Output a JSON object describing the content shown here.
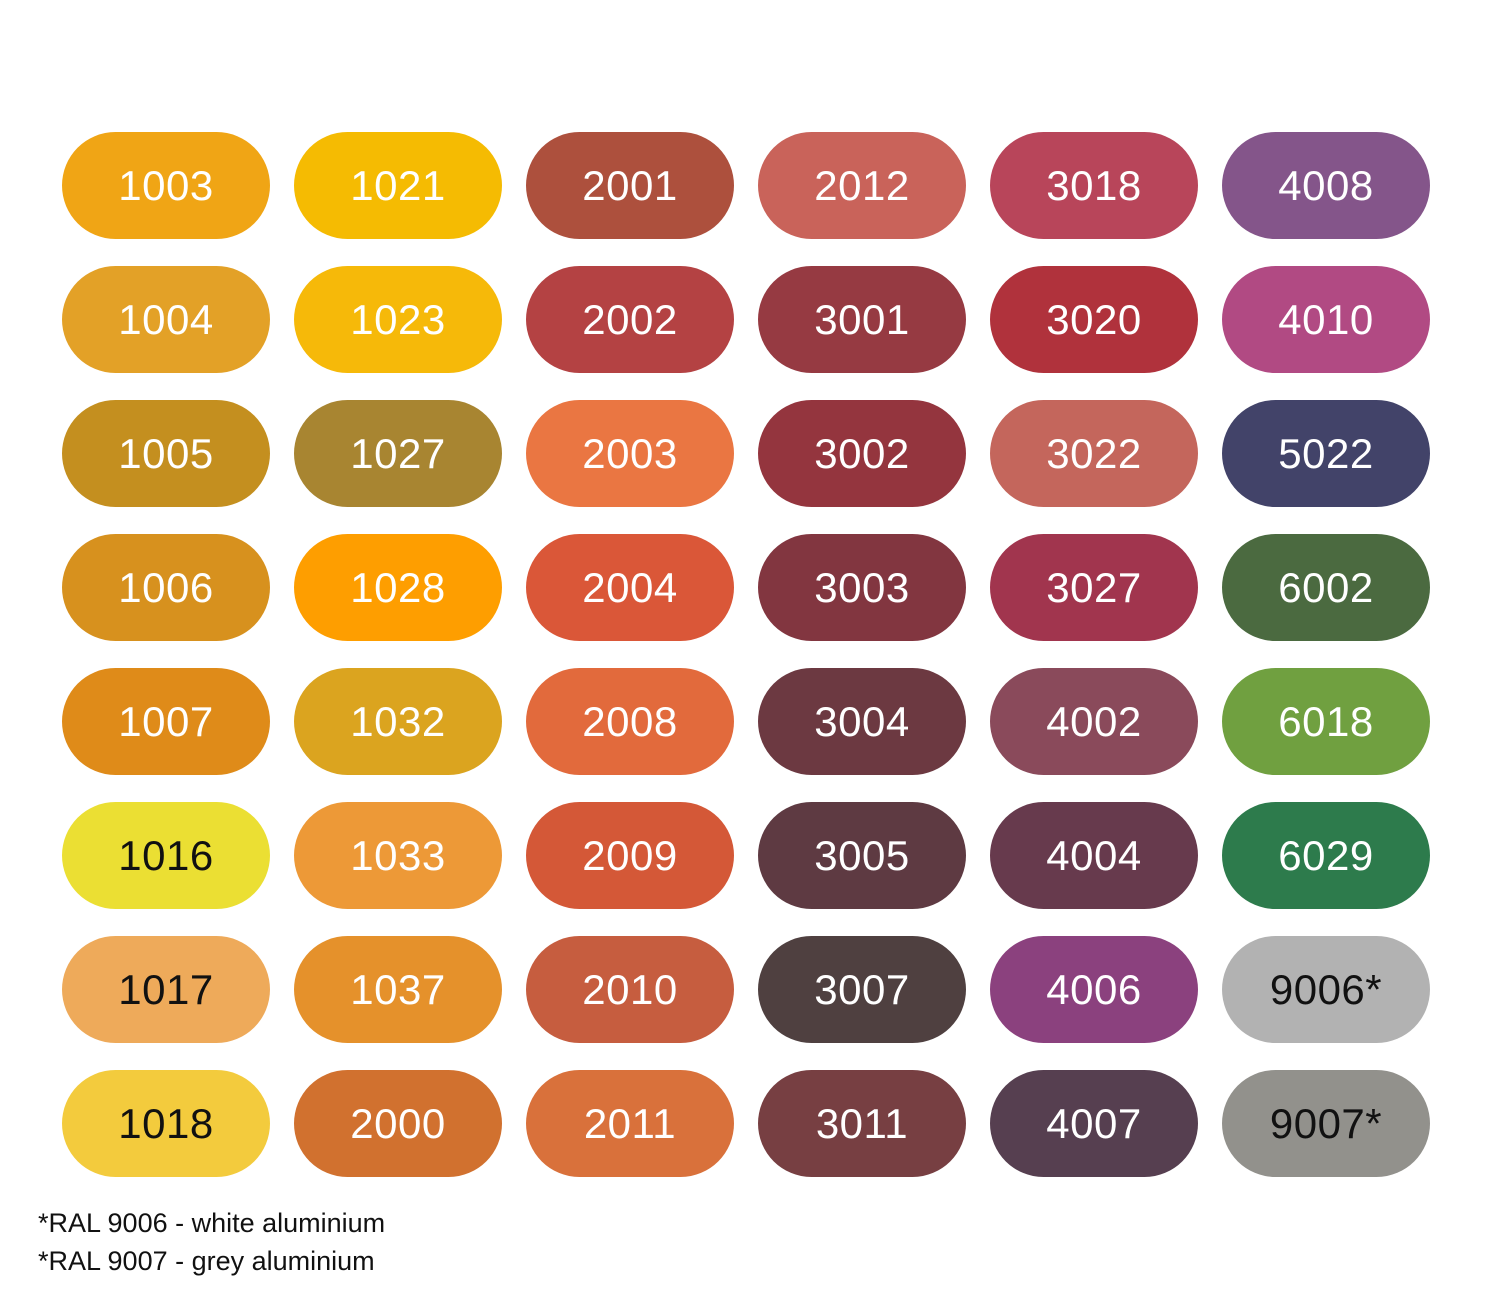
{
  "swatches": [
    {
      "label": "1003",
      "color": "#f0a515",
      "text_color": "#ffffff"
    },
    {
      "label": "1021",
      "color": "#f5bb02",
      "text_color": "#ffffff"
    },
    {
      "label": "2001",
      "color": "#ad503d",
      "text_color": "#ffffff"
    },
    {
      "label": "2012",
      "color": "#c9635a",
      "text_color": "#ffffff"
    },
    {
      "label": "3018",
      "color": "#b8455a",
      "text_color": "#ffffff"
    },
    {
      "label": "4008",
      "color": "#84558a",
      "text_color": "#ffffff"
    },
    {
      "label": "1004",
      "color": "#e3a127",
      "text_color": "#ffffff"
    },
    {
      "label": "1023",
      "color": "#f6b909",
      "text_color": "#ffffff"
    },
    {
      "label": "2002",
      "color": "#b44243",
      "text_color": "#ffffff"
    },
    {
      "label": "3001",
      "color": "#963a42",
      "text_color": "#ffffff"
    },
    {
      "label": "3020",
      "color": "#b0323c",
      "text_color": "#ffffff"
    },
    {
      "label": "4010",
      "color": "#b14a83",
      "text_color": "#ffffff"
    },
    {
      "label": "1005",
      "color": "#c48f1f",
      "text_color": "#ffffff"
    },
    {
      "label": "1027",
      "color": "#a88531",
      "text_color": "#ffffff"
    },
    {
      "label": "2003",
      "color": "#ea7642",
      "text_color": "#ffffff"
    },
    {
      "label": "3002",
      "color": "#94353e",
      "text_color": "#ffffff"
    },
    {
      "label": "3022",
      "color": "#c4665c",
      "text_color": "#ffffff"
    },
    {
      "label": "5022",
      "color": "#424369",
      "text_color": "#ffffff"
    },
    {
      "label": "1006",
      "color": "#d7911e",
      "text_color": "#ffffff"
    },
    {
      "label": "1028",
      "color": "#fe9e00",
      "text_color": "#ffffff"
    },
    {
      "label": "2004",
      "color": "#da5738",
      "text_color": "#ffffff"
    },
    {
      "label": "3003",
      "color": "#823640",
      "text_color": "#ffffff"
    },
    {
      "label": "3027",
      "color": "#a1354e",
      "text_color": "#ffffff"
    },
    {
      "label": "6002",
      "color": "#4b6a40",
      "text_color": "#ffffff"
    },
    {
      "label": "1007",
      "color": "#df8b19",
      "text_color": "#ffffff"
    },
    {
      "label": "1032",
      "color": "#dba41f",
      "text_color": "#ffffff"
    },
    {
      "label": "2008",
      "color": "#e26a3c",
      "text_color": "#ffffff"
    },
    {
      "label": "3004",
      "color": "#6c3941",
      "text_color": "#ffffff"
    },
    {
      "label": "4002",
      "color": "#8a4a5b",
      "text_color": "#ffffff"
    },
    {
      "label": "6018",
      "color": "#70a040",
      "text_color": "#ffffff"
    },
    {
      "label": "1016",
      "color": "#ebdf33",
      "text_color": "#111111"
    },
    {
      "label": "1033",
      "color": "#ed9937",
      "text_color": "#ffffff"
    },
    {
      "label": "2009",
      "color": "#d45837",
      "text_color": "#ffffff"
    },
    {
      "label": "3005",
      "color": "#5e3a42",
      "text_color": "#ffffff"
    },
    {
      "label": "4004",
      "color": "#673a4d",
      "text_color": "#ffffff"
    },
    {
      "label": "6029",
      "color": "#2d7b4c",
      "text_color": "#ffffff"
    },
    {
      "label": "1017",
      "color": "#eeaa5a",
      "text_color": "#111111"
    },
    {
      "label": "1037",
      "color": "#e5912b",
      "text_color": "#ffffff"
    },
    {
      "label": "2010",
      "color": "#c65d3f",
      "text_color": "#ffffff"
    },
    {
      "label": "3007",
      "color": "#4f4040",
      "text_color": "#ffffff"
    },
    {
      "label": "4006",
      "color": "#8b417e",
      "text_color": "#ffffff"
    },
    {
      "label": "9006*",
      "color": "#b2b2b2",
      "text_color": "#111111"
    },
    {
      "label": "1018",
      "color": "#f3cb3d",
      "text_color": "#111111"
    },
    {
      "label": "2000",
      "color": "#d1712f",
      "text_color": "#ffffff"
    },
    {
      "label": "2011",
      "color": "#d9713b",
      "text_color": "#ffffff"
    },
    {
      "label": "3011",
      "color": "#773f42",
      "text_color": "#ffffff"
    },
    {
      "label": "4007",
      "color": "#563f50",
      "text_color": "#ffffff"
    },
    {
      "label": "9007*",
      "color": "#92918c",
      "text_color": "#111111"
    }
  ],
  "footnotes": [
    "*RAL 9006 - white aluminium",
    "*RAL 9007 - grey aluminium"
  ]
}
